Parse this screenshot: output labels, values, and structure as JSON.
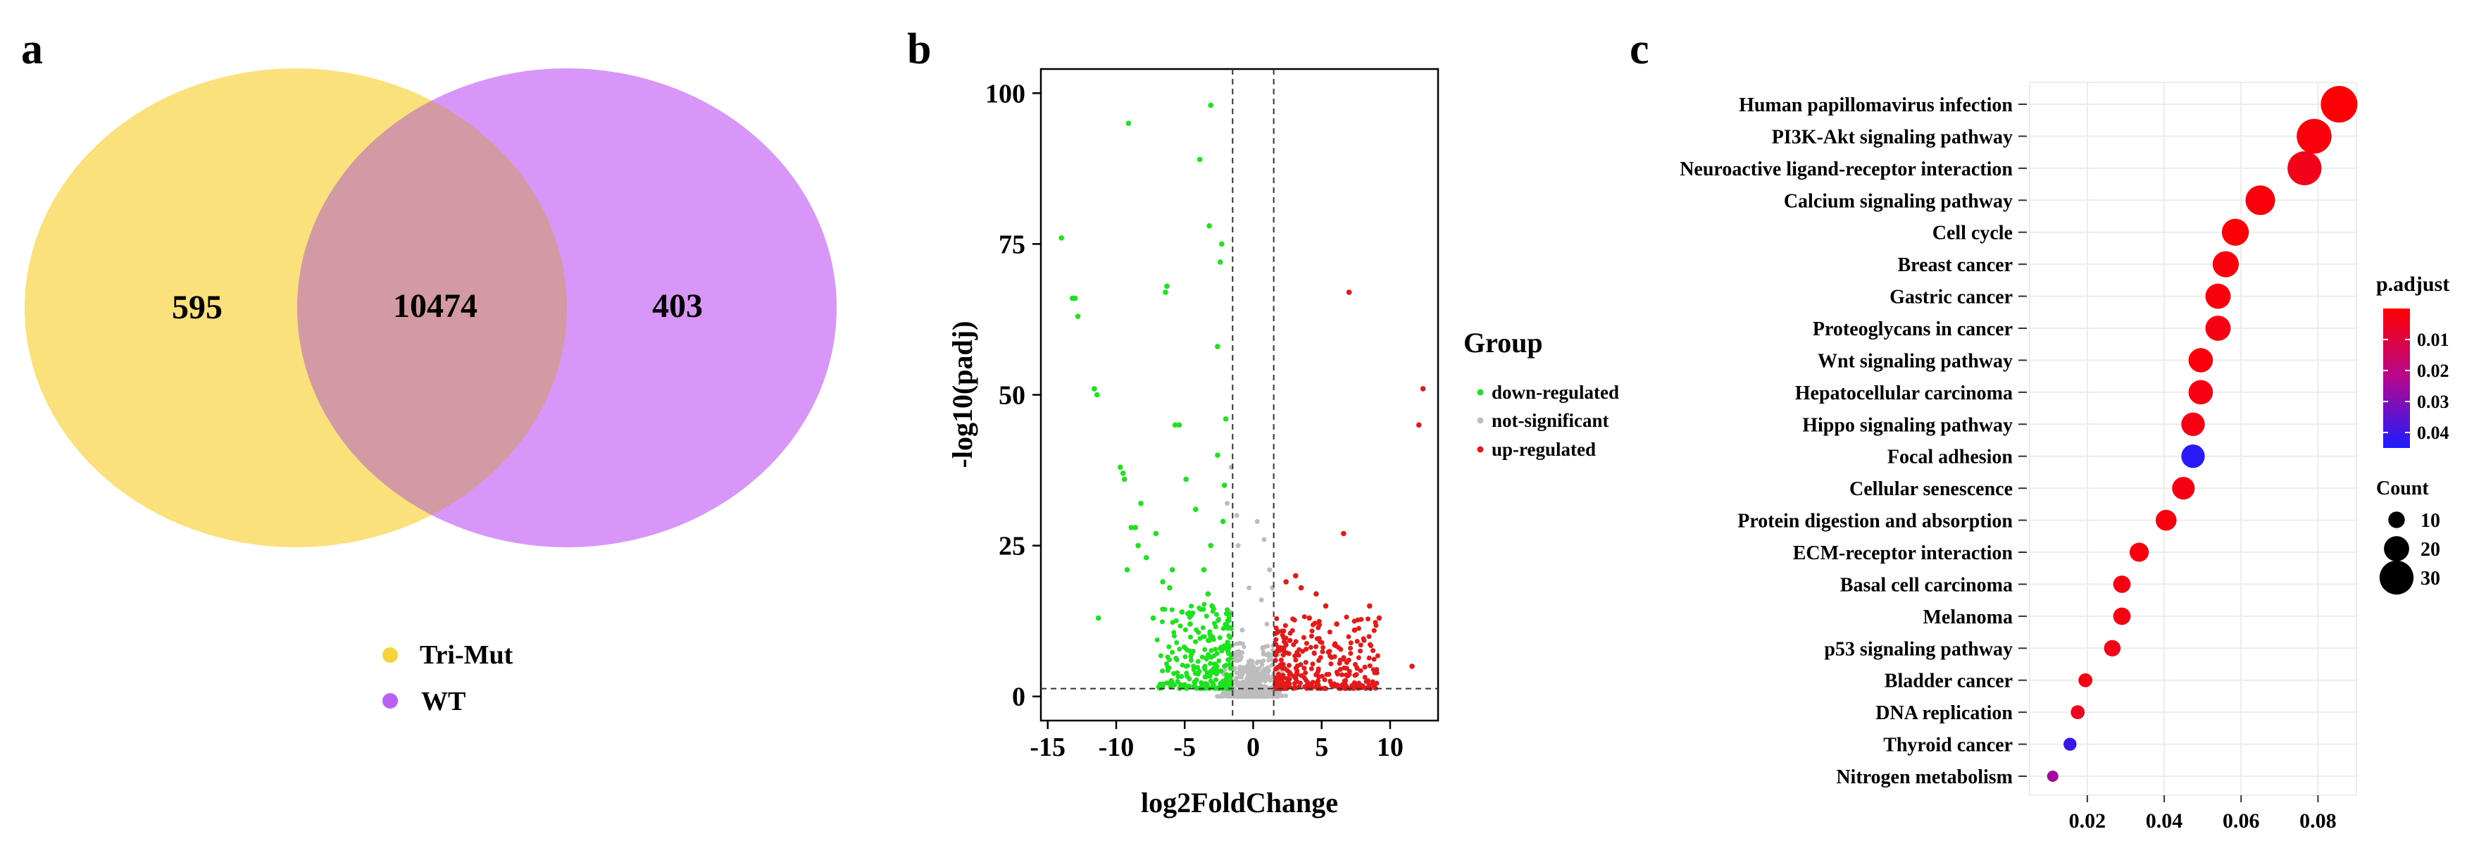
{
  "panels": {
    "a": "a",
    "b": "b",
    "c": "c"
  },
  "venn": {
    "left_only": "595",
    "overlap": "10474",
    "right_only": "403",
    "legend": [
      {
        "label": "Tri-Mut",
        "color": "#fce37a"
      },
      {
        "label": "WT",
        "color": "#d9a0f7"
      }
    ],
    "dot_colors": [
      "#f5d33a",
      "#b961f2"
    ]
  },
  "chart_data": [
    {
      "type": "scatter",
      "title": "",
      "xlabel": "log2FoldChange",
      "ylabel": "-log10(padj)",
      "xlim": [
        -15.5,
        13.5
      ],
      "ylim": [
        -4,
        104
      ],
      "xticks": [
        -15,
        -10,
        -5,
        0,
        5,
        10
      ],
      "xtick_labels": [
        "-15",
        "-10",
        "-5",
        "0",
        "5",
        "10"
      ],
      "yticks": [
        0,
        25,
        50,
        75,
        100
      ],
      "ytick_labels": [
        "0",
        "25",
        "50",
        "75",
        "100"
      ],
      "thresholds": {
        "x": [
          -1.5,
          1.5
        ],
        "y": 1.3
      },
      "legend_title": "Group",
      "legend": [
        {
          "label": "down-regulated",
          "color": "#1fe21f"
        },
        {
          "label": "not-significant",
          "color": "#bdbdbd"
        },
        {
          "label": "up-regulated",
          "color": "#e41a1a"
        }
      ],
      "points_down": [
        [
          -14,
          76
        ],
        [
          -13.2,
          66
        ],
        [
          -13,
          66
        ],
        [
          -12.8,
          63
        ],
        [
          -11.6,
          51
        ],
        [
          -11.4,
          50
        ],
        [
          -9.7,
          38
        ],
        [
          -9.5,
          37
        ],
        [
          -9.4,
          36
        ],
        [
          -9.1,
          95
        ],
        [
          -8.9,
          28
        ],
        [
          -8.6,
          28
        ],
        [
          -8.4,
          25
        ],
        [
          -7.8,
          23
        ],
        [
          -6.4,
          67
        ],
        [
          -6.3,
          68
        ],
        [
          -5.7,
          45
        ],
        [
          -5.4,
          45
        ],
        [
          -3.9,
          89
        ],
        [
          -3.2,
          78
        ],
        [
          -3.1,
          98
        ],
        [
          -2.6,
          58
        ],
        [
          -2.4,
          72
        ],
        [
          -2.3,
          75
        ],
        [
          -2,
          46
        ],
        [
          -11.3,
          13
        ],
        [
          -9.2,
          21
        ],
        [
          -8.2,
          32
        ],
        [
          -7.1,
          27
        ],
        [
          -6.6,
          19
        ],
        [
          -5.9,
          21
        ],
        [
          -4.9,
          36
        ],
        [
          -4.2,
          31
        ],
        [
          -3.3,
          17
        ],
        [
          -2.6,
          40
        ],
        [
          -2.1,
          35
        ],
        [
          -2.2,
          29
        ],
        [
          -3.1,
          25
        ],
        [
          -3.6,
          21
        ],
        [
          -5.2,
          14
        ],
        [
          -6.1,
          18
        ],
        [
          -7.3,
          13
        ],
        [
          -4.6,
          12
        ],
        [
          -3,
          15
        ]
      ],
      "points_up": [
        [
          7,
          67
        ],
        [
          12.1,
          45
        ],
        [
          12.4,
          51
        ],
        [
          6.6,
          27
        ],
        [
          3.1,
          20
        ],
        [
          3.5,
          18
        ],
        [
          4.6,
          17
        ],
        [
          5.3,
          15
        ],
        [
          8.5,
          15
        ],
        [
          9.2,
          13
        ],
        [
          6.1,
          12
        ],
        [
          7.4,
          11
        ],
        [
          4.1,
          13
        ],
        [
          2.4,
          19
        ],
        [
          11.6,
          5
        ]
      ],
      "points_ns_extra": [
        [
          -1.9,
          32
        ],
        [
          -1.6,
          38
        ],
        [
          -1.2,
          30
        ],
        [
          -1.1,
          25
        ],
        [
          0.3,
          29
        ],
        [
          0.8,
          26
        ],
        [
          1.2,
          21
        ],
        [
          1.4,
          18
        ],
        [
          -0.3,
          18
        ],
        [
          0.6,
          16
        ],
        [
          -1.7,
          14
        ],
        [
          1,
          12
        ],
        [
          -0.8,
          11
        ]
      ]
    },
    {
      "type": "dot",
      "title": "",
      "xlabel": "",
      "ylabel": "",
      "xlim": [
        0.005,
        0.09
      ],
      "xticks": [
        0.02,
        0.04,
        0.06,
        0.08
      ],
      "xtick_labels": [
        "0.02",
        "0.04",
        "0.06",
        "0.08"
      ],
      "color_legend_title": "p.adjust",
      "color_ticks": [
        "0.01",
        "0.02",
        "0.03",
        "0.04"
      ],
      "color_range": [
        0,
        0.045
      ],
      "size_legend_title": "Count",
      "size_ticks": [
        "10",
        "20",
        "30"
      ],
      "terms": [
        {
          "label": "Human papillomavirus infection",
          "gene_ratio": 0.0855,
          "p_adjust": 0.001,
          "count": 33
        },
        {
          "label": "PI3K-Akt signaling pathway",
          "gene_ratio": 0.079,
          "p_adjust": 0.002,
          "count": 31
        },
        {
          "label": "Neuroactive ligand-receptor interaction",
          "gene_ratio": 0.0765,
          "p_adjust": 0.004,
          "count": 30
        },
        {
          "label": "Calcium signaling pathway",
          "gene_ratio": 0.065,
          "p_adjust": 0.002,
          "count": 25
        },
        {
          "label": "Cell cycle",
          "gene_ratio": 0.0585,
          "p_adjust": 0.001,
          "count": 22
        },
        {
          "label": "Breast cancer",
          "gene_ratio": 0.056,
          "p_adjust": 0.002,
          "count": 21
        },
        {
          "label": "Gastric cancer",
          "gene_ratio": 0.054,
          "p_adjust": 0.002,
          "count": 20
        },
        {
          "label": "Proteoglycans in cancer",
          "gene_ratio": 0.054,
          "p_adjust": 0.003,
          "count": 20
        },
        {
          "label": "Wnt signaling pathway",
          "gene_ratio": 0.0495,
          "p_adjust": 0.002,
          "count": 19
        },
        {
          "label": "Hepatocellular carcinoma",
          "gene_ratio": 0.0495,
          "p_adjust": 0.003,
          "count": 19
        },
        {
          "label": "Hippo signaling pathway",
          "gene_ratio": 0.0475,
          "p_adjust": 0.003,
          "count": 18
        },
        {
          "label": "Focal adhesion",
          "gene_ratio": 0.0475,
          "p_adjust": 0.043,
          "count": 18
        },
        {
          "label": "Cellular senescence",
          "gene_ratio": 0.045,
          "p_adjust": 0.003,
          "count": 17
        },
        {
          "label": "Protein digestion and absorption",
          "gene_ratio": 0.0405,
          "p_adjust": 0.002,
          "count": 15
        },
        {
          "label": "ECM-receptor interaction",
          "gene_ratio": 0.0335,
          "p_adjust": 0.002,
          "count": 13
        },
        {
          "label": "Basal cell carcinoma",
          "gene_ratio": 0.029,
          "p_adjust": 0.003,
          "count": 11
        },
        {
          "label": "Melanoma",
          "gene_ratio": 0.029,
          "p_adjust": 0.003,
          "count": 11
        },
        {
          "label": "p53 signaling pathway",
          "gene_ratio": 0.0265,
          "p_adjust": 0.004,
          "count": 10
        },
        {
          "label": "Bladder cancer",
          "gene_ratio": 0.0195,
          "p_adjust": 0.003,
          "count": 7
        },
        {
          "label": "DNA replication",
          "gene_ratio": 0.0175,
          "p_adjust": 0.005,
          "count": 7
        },
        {
          "label": "Thyroid cancer",
          "gene_ratio": 0.0155,
          "p_adjust": 0.041,
          "count": 6
        },
        {
          "label": "Nitrogen metabolism",
          "gene_ratio": 0.011,
          "p_adjust": 0.025,
          "count": 4
        }
      ]
    }
  ]
}
